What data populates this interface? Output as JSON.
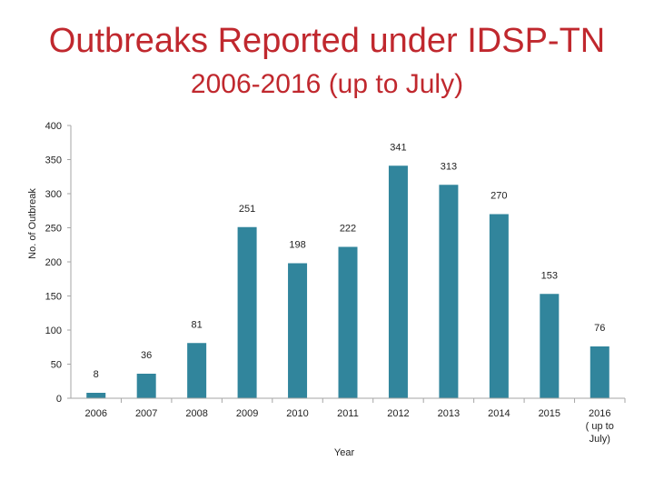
{
  "chart_data": {
    "type": "bar",
    "title": "Outbreaks Reported under IDSP-TN",
    "subtitle": "2006-2016 (up to July)",
    "xlabel": "Year",
    "ylabel": "No. of Outbreak",
    "ylim": [
      0,
      400
    ],
    "yticks": [
      0,
      50,
      100,
      150,
      200,
      250,
      300,
      350,
      400
    ],
    "categories": [
      "2006",
      "2007",
      "2008",
      "2009",
      "2010",
      "2011",
      "2012",
      "2013",
      "2014",
      "2015",
      "2016 ( up to July)"
    ],
    "category_lines": [
      [
        "2006"
      ],
      [
        "2007"
      ],
      [
        "2008"
      ],
      [
        "2009"
      ],
      [
        "2010"
      ],
      [
        "2011"
      ],
      [
        "2012"
      ],
      [
        "2013"
      ],
      [
        "2014"
      ],
      [
        "2015"
      ],
      [
        "2016",
        "( up to",
        "July)"
      ]
    ],
    "values": [
      8,
      36,
      81,
      251,
      198,
      222,
      341,
      313,
      270,
      153,
      76
    ],
    "bar_color": "#31859c",
    "grid": false,
    "legend": "none"
  }
}
